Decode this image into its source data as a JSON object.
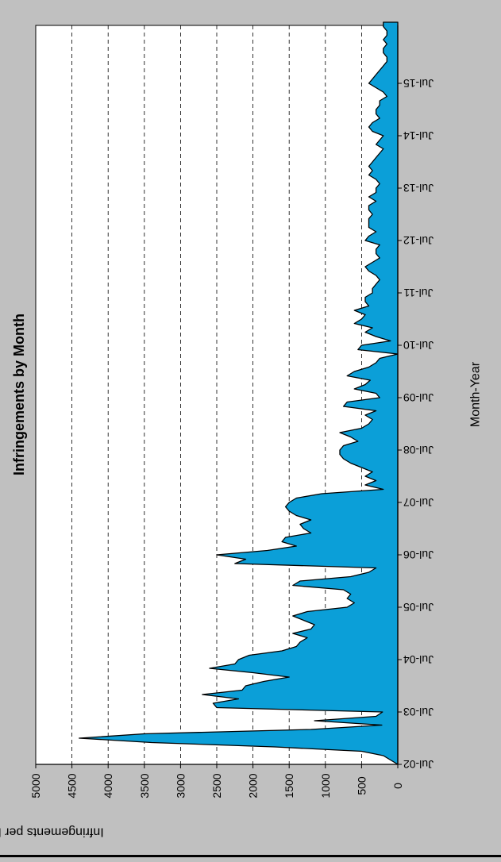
{
  "chart_data": {
    "type": "area",
    "orientation": "rotated-90-clockwise",
    "title": "Infringements by Month",
    "xlabel": "Month-Year",
    "ylabel": "Infringements per Month",
    "ylim": [
      0,
      5000
    ],
    "y_ticks": [
      0,
      500,
      1000,
      1500,
      2000,
      2500,
      3000,
      3500,
      4000,
      4500,
      5000
    ],
    "grid": "dashed-horizontal",
    "fill_color": "#0b9fd8",
    "x_tick_labels": [
      "Jul-02",
      "Jul-03",
      "Jul-04",
      "Jul-05",
      "Jul-06",
      "Jul-07",
      "Jul-08",
      "Jul-09",
      "Jul-10",
      "Jul-11",
      "Jul-12",
      "Jul-13",
      "Jul-14",
      "Jul-15"
    ],
    "x_start": "Jul-02",
    "series": [
      {
        "values": [
          0,
          100,
          200,
          500,
          1700,
          3400,
          4400,
          3500,
          1200,
          220,
          1150,
          300,
          210,
          2500,
          2550,
          2200,
          2700,
          2150,
          2100,
          1850,
          1500,
          2000,
          2600,
          2250,
          2200,
          2050,
          1600,
          1400,
          1350,
          1250,
          1450,
          1200,
          1150,
          1300,
          1450,
          1250,
          700,
          600,
          700,
          650,
          750,
          1450,
          1350,
          650,
          400,
          300,
          2250,
          2100,
          2500,
          1800,
          1400,
          1600,
          1550,
          1200,
          1300,
          1350,
          1200,
          1400,
          1500,
          1550,
          1500,
          1400,
          1050,
          200,
          450,
          300,
          450,
          350,
          500,
          650,
          750,
          800,
          800,
          750,
          550,
          650,
          800,
          500,
          400,
          350,
          450,
          300,
          750,
          700,
          250,
          300,
          600,
          450,
          380,
          700,
          600,
          400,
          300,
          250,
          0,
          550,
          500,
          100,
          300,
          450,
          350,
          600,
          500,
          450,
          600,
          400,
          450,
          450,
          350,
          350,
          300,
          250,
          300,
          400,
          450,
          350,
          250,
          300,
          300,
          250,
          450,
          400,
          300,
          400,
          400,
          400,
          350,
          400,
          400,
          300,
          400,
          300,
          300,
          250,
          300,
          400,
          350,
          400,
          350,
          300,
          250,
          200,
          300,
          250,
          200,
          350,
          400,
          350,
          250,
          300,
          300,
          250,
          250,
          150,
          200,
          300,
          400,
          350,
          300,
          250,
          200,
          150,
          150,
          200,
          200,
          150,
          200,
          150,
          150,
          200,
          200
        ]
      }
    ]
  }
}
